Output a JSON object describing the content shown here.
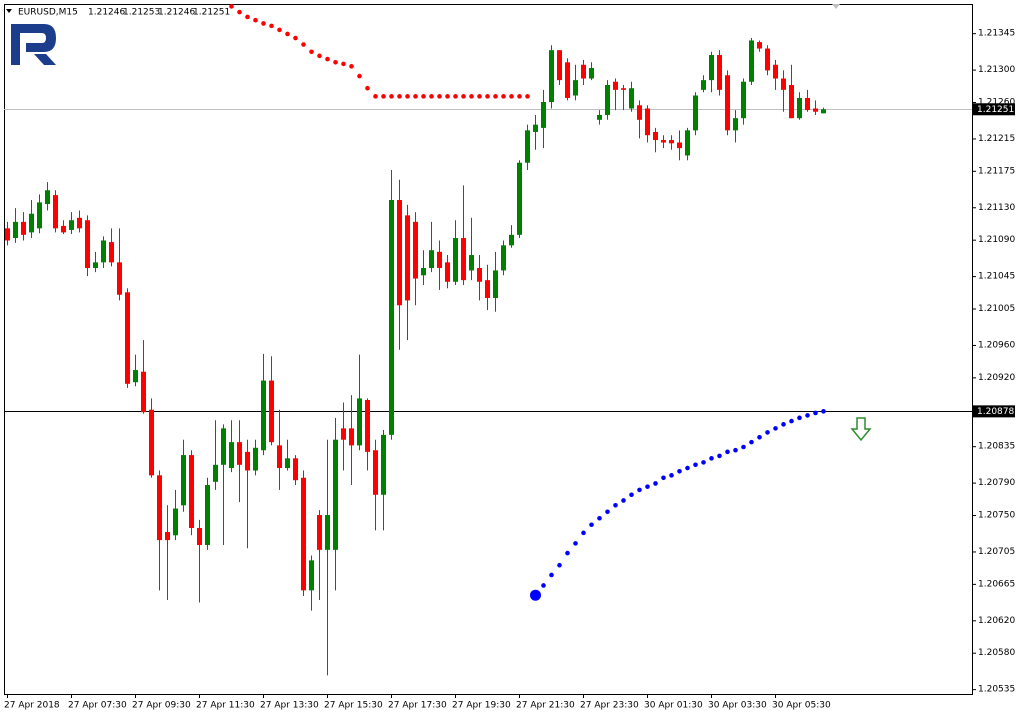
{
  "chart_data": {
    "type": "candlestick",
    "symbol": "EURUSD,M15",
    "up_color": "#008000",
    "down_color": "#ff0000",
    "categories": [
      "27 Apr 2018",
      null,
      null,
      null,
      null,
      null,
      null,
      null,
      "27 Apr 07:30",
      null,
      null,
      null,
      null,
      null,
      null,
      null,
      "27 Apr 09:30",
      null,
      null,
      null,
      null,
      null,
      null,
      null,
      "27 Apr 11:30",
      null,
      null,
      null,
      null,
      null,
      null,
      null,
      "27 Apr 13:30",
      null,
      null,
      null,
      null,
      null,
      null,
      null,
      "27 Apr 15:30",
      null,
      null,
      null,
      null,
      null,
      null,
      null,
      "27 Apr 17:30",
      null,
      null,
      null,
      null,
      null,
      null,
      null,
      "27 Apr 19:30",
      null,
      null,
      null,
      null,
      null,
      null,
      null,
      "27 Apr 21:30",
      null,
      null,
      null,
      null,
      null,
      null,
      null,
      "27 Apr 23:30",
      null,
      null,
      null,
      null,
      null,
      null,
      null,
      "30 Apr 01:30",
      null,
      null,
      null,
      null,
      null,
      null,
      null,
      "30 Apr 03:30",
      null,
      null,
      null,
      null,
      null,
      null,
      null,
      "30 Apr 05:30",
      null,
      null,
      null,
      null,
      null,
      null
    ],
    "open": [
      1.21104,
      1.21092,
      1.21112,
      1.21099,
      1.21104,
      1.21134,
      1.21145,
      1.21107,
      1.21102,
      1.21117,
      1.21114,
      1.21055,
      1.21062,
      1.21087,
      1.21062,
      1.21025,
      1.20914,
      1.20927,
      1.2088,
      1.20799,
      1.20729,
      1.20725,
      1.20762,
      1.20824,
      1.20734,
      1.20713,
      1.20791,
      1.20812,
      1.20808,
      1.2084,
      1.20828,
      1.20805,
      1.2083,
      1.20916,
      1.20836,
      1.20808,
      1.2082,
      1.20796,
      1.20657,
      1.2075,
      1.20707,
      1.20707,
      1.20857,
      1.20857,
      1.20836,
      1.20892,
      1.2083,
      1.20775,
      1.20849,
      1.21139,
      1.2112,
      1.21112,
      1.21046,
      1.21055,
      1.21075,
      1.21062,
      1.21038,
      1.21092,
      1.21052,
      1.21055,
      1.2104,
      1.21018,
      1.21052,
      1.21083,
      1.21096,
      1.21185,
      1.21223,
      1.21228,
      1.2126,
      1.21324,
      1.21309,
      1.21268,
      1.21306,
      1.21289,
      1.21238,
      1.21244,
      1.21285,
      1.21277,
      1.21252,
      1.21256,
      1.21252,
      1.21223,
      1.21213,
      1.21213,
      1.2121,
      1.21194,
      1.21225,
      1.21275,
      1.21287,
      1.21318,
      1.21293,
      1.21225,
      1.2124,
      1.21285,
      1.21334,
      1.21326,
      1.21306,
      1.21289,
      1.21281,
      1.2124,
      1.21265,
      1.21252,
      1.21246
    ],
    "high": [
      1.21112,
      1.21129,
      1.21124,
      1.21139,
      1.21146,
      1.21161,
      1.21151,
      1.21114,
      1.21124,
      1.21126,
      1.2112,
      1.21075,
      1.21094,
      1.21104,
      1.21104,
      1.2103,
      1.20948,
      1.20966,
      1.20894,
      1.20805,
      1.20762,
      1.20781,
      1.20843,
      1.2083,
      1.20744,
      1.20796,
      1.20867,
      1.20862,
      1.20867,
      1.20867,
      1.20843,
      1.20843,
      1.20949,
      1.20946,
      1.2088,
      1.20843,
      1.20824,
      1.20805,
      1.207,
      1.20756,
      1.20843,
      1.2087,
      1.20889,
      1.20898,
      1.20948,
      1.20894,
      1.20843,
      1.20855,
      1.21176,
      1.21164,
      1.21133,
      1.21124,
      1.21077,
      1.21112,
      1.21089,
      1.21071,
      1.21114,
      1.21157,
      1.21117,
      1.21071,
      1.21059,
      1.21075,
      1.21089,
      1.21108,
      1.21188,
      1.21232,
      1.21244,
      1.21275,
      1.2133,
      1.21324,
      1.21314,
      1.21306,
      1.21312,
      1.21309,
      1.2125,
      1.21287,
      1.21289,
      1.21281,
      1.21285,
      1.21262,
      1.21256,
      1.21228,
      1.21219,
      1.21219,
      1.21225,
      1.21228,
      1.21272,
      1.21293,
      1.21322,
      1.21324,
      1.21299,
      1.2125,
      1.21289,
      1.21339,
      1.21336,
      1.2133,
      1.21312,
      1.21299,
      1.21306,
      1.21272,
      1.21275,
      1.21262,
      1.21253
    ],
    "low": [
      1.21083,
      1.21086,
      1.21089,
      1.21092,
      1.21098,
      1.21126,
      1.21099,
      1.21097,
      1.21097,
      1.21099,
      1.21045,
      1.2105,
      1.21055,
      1.21057,
      1.21015,
      1.20907,
      1.20909,
      1.20875,
      1.20796,
      1.20657,
      1.20645,
      1.20719,
      1.20754,
      1.20725,
      1.20642,
      1.20707,
      1.20781,
      1.20713,
      1.20803,
      1.20766,
      1.20709,
      1.20799,
      1.20824,
      1.20836,
      1.20781,
      1.20805,
      1.20787,
      1.2065,
      1.20632,
      1.20645,
      1.20552,
      1.20657,
      1.20805,
      1.20787,
      1.2083,
      1.20805,
      1.20731,
      1.20731,
      1.20843,
      1.20954,
      1.20966,
      1.21009,
      1.21034,
      1.2105,
      1.21028,
      1.2103,
      1.21034,
      1.21034,
      1.2104,
      1.21015,
      1.21003,
      1.21001,
      1.21046,
      1.2108,
      1.21092,
      1.21176,
      1.21201,
      1.21203,
      1.21252,
      1.21281,
      1.21262,
      1.21262,
      1.21281,
      1.21287,
      1.21232,
      1.21238,
      1.2125,
      1.2125,
      1.21248,
      1.21215,
      1.2121,
      1.21198,
      1.21203,
      1.21201,
      1.21188,
      1.21188,
      1.21219,
      1.21272,
      1.21272,
      1.21268,
      1.21219,
      1.2121,
      1.21232,
      1.21281,
      1.21322,
      1.21293,
      1.21275,
      1.21248,
      1.2124,
      1.21238,
      1.21248,
      1.21244,
      1.21246
    ],
    "close": [
      1.21089,
      1.21112,
      1.21096,
      1.21122,
      1.21136,
      1.21151,
      1.21104,
      1.21099,
      1.21114,
      1.21104,
      1.21055,
      1.21062,
      1.21089,
      1.21062,
      1.21022,
      1.20912,
      1.20929,
      1.20877,
      1.20799,
      1.20719,
      1.20719,
      1.20758,
      1.20824,
      1.20734,
      1.20713,
      1.20787,
      1.20812,
      1.20857,
      1.2084,
      1.20812,
      1.20805,
      1.20833,
      1.20916,
      1.2084,
      1.20808,
      1.2082,
      1.20793,
      1.20657,
      1.20694,
      1.20707,
      1.2075,
      1.20843,
      1.20843,
      1.20836,
      1.20894,
      1.20828,
      1.20775,
      1.20849,
      1.21139,
      1.21009,
      1.21015,
      1.21042,
      1.21055,
      1.21077,
      1.21055,
      1.21038,
      1.21092,
      1.2104,
      1.21071,
      1.21038,
      1.21018,
      1.21052,
      1.21083,
      1.21096,
      1.21185,
      1.21225,
      1.21232,
      1.2126,
      1.21324,
      1.21287,
      1.21265,
      1.21287,
      1.21289,
      1.21302,
      1.21244,
      1.21281,
      1.21275,
      1.21275,
      1.21277,
      1.21238,
      1.21219,
      1.21213,
      1.2121,
      1.21209,
      1.21203,
      1.21225,
      1.21268,
      1.21287,
      1.21318,
      1.21275,
      1.21225,
      1.2124,
      1.21285,
      1.21336,
      1.21326,
      1.21299,
      1.21289,
      1.21275,
      1.2124,
      1.21265,
      1.2125,
      1.21248,
      1.21251
    ],
    "indicators": [
      {
        "color": "#ff0000",
        "values": [
          null,
          null,
          null,
          null,
          null,
          null,
          null,
          null,
          null,
          null,
          null,
          null,
          null,
          null,
          null,
          null,
          null,
          null,
          null,
          null,
          null,
          null,
          null,
          null,
          null,
          null,
          null,
          null,
          1.21378,
          1.21371,
          1.21365,
          1.21361,
          1.21357,
          1.21354,
          1.21349,
          1.21344,
          1.21339,
          1.21331,
          1.21322,
          1.21317,
          1.21313,
          1.21309,
          1.21307,
          1.21304,
          1.21292,
          1.21277,
          1.21267,
          1.21267,
          1.21267,
          1.21267,
          1.21267,
          1.21267,
          1.21267,
          1.21267,
          1.21267,
          1.21267,
          1.21267,
          1.21267,
          1.21267,
          1.21267,
          1.21267,
          1.21267,
          1.21267,
          1.21267,
          1.21267,
          1.21267,
          null,
          null,
          null,
          null,
          null,
          null,
          null,
          null,
          null,
          null,
          null,
          null,
          null,
          null,
          null,
          null,
          null,
          null,
          null,
          null,
          null,
          null,
          null,
          null,
          null,
          null,
          null,
          null,
          null,
          null,
          null,
          null,
          null,
          null,
          null,
          null,
          null
        ]
      },
      {
        "color": "#0000ff",
        "start_marker": true,
        "values": [
          null,
          null,
          null,
          null,
          null,
          null,
          null,
          null,
          null,
          null,
          null,
          null,
          null,
          null,
          null,
          null,
          null,
          null,
          null,
          null,
          null,
          null,
          null,
          null,
          null,
          null,
          null,
          null,
          null,
          null,
          null,
          null,
          null,
          null,
          null,
          null,
          null,
          null,
          null,
          null,
          null,
          null,
          null,
          null,
          null,
          null,
          null,
          null,
          null,
          null,
          null,
          null,
          null,
          null,
          null,
          null,
          null,
          null,
          null,
          null,
          null,
          null,
          null,
          null,
          null,
          null,
          1.20651,
          1.20663,
          1.20676,
          1.20688,
          1.20703,
          1.20715,
          1.20728,
          1.20738,
          1.20746,
          1.20754,
          1.20762,
          1.20768,
          1.20775,
          1.20781,
          1.20785,
          1.20789,
          1.20796,
          1.20799,
          1.20804,
          1.20808,
          1.20812,
          1.20815,
          1.2082,
          1.20823,
          1.20828,
          1.2083,
          1.20834,
          1.2084,
          1.20846,
          1.20852,
          1.20857,
          1.20862,
          1.20866,
          1.2087,
          1.20873,
          1.20876,
          1.20878
        ]
      }
    ],
    "hlines": [
      {
        "value": 1.21251,
        "color": "#c0c0c0"
      },
      {
        "value": 1.20878,
        "color": "#000000"
      }
    ],
    "ylim": [
      1.20529,
      1.21381
    ],
    "yticks": [
      1.21345,
      {
        "value": 1.213,
        "label": "1.21300"
      },
      {
        "value": 1.2126,
        "label": "1.21260"
      },
      1.21215,
      1.21175,
      {
        "value": 1.2113,
        "label": "1.21130"
      },
      {
        "value": 1.2109,
        "label": "1.21090"
      },
      1.21045,
      1.21005,
      {
        "value": 1.2096,
        "label": "1.20960"
      },
      {
        "value": 1.2092,
        "label": "1.20920"
      },
      1.20835,
      {
        "value": 1.2079,
        "label": "1.20790"
      },
      {
        "value": 1.2075,
        "label": "1.20750"
      },
      1.20705,
      1.20665,
      {
        "value": 1.2062,
        "label": "1.20620"
      },
      {
        "value": 1.2058,
        "label": "1.20580"
      },
      1.20535
    ]
  }
}
